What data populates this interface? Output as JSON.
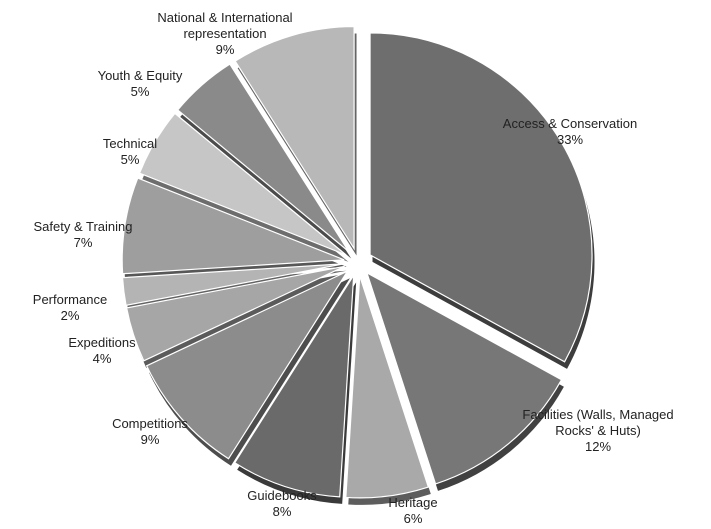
{
  "chart_data": {
    "type": "pie",
    "style": "exploded 3D pie, grayscale",
    "start_angle_deg": 0,
    "direction": "clockwise",
    "slices": [
      {
        "label": "Access & Conservation",
        "value": 33,
        "pct_label": "33%",
        "color": "#6e6e6e"
      },
      {
        "label": "Facilities (Walls, Managed Rocks' & Huts)",
        "value": 12,
        "pct_label": "12%",
        "color": "#777777"
      },
      {
        "label": "Heritage",
        "value": 6,
        "pct_label": "6%",
        "color": "#a9a9a9"
      },
      {
        "label": "Guidebooks",
        "value": 8,
        "pct_label": "8%",
        "color": "#6a6a6a"
      },
      {
        "label": "Competitions",
        "value": 9,
        "pct_label": "9%",
        "color": "#8c8c8c"
      },
      {
        "label": "Expeditions",
        "value": 4,
        "pct_label": "4%",
        "color": "#a6a6a6"
      },
      {
        "label": "Performance",
        "value": 2,
        "pct_label": "2%",
        "color": "#b4b4b4"
      },
      {
        "label": "Safety & Training",
        "value": 7,
        "pct_label": "7%",
        "color": "#9e9e9e"
      },
      {
        "label": "Technical",
        "value": 5,
        "pct_label": "5%",
        "color": "#c6c6c6"
      },
      {
        "label": "Youth & Equity",
        "value": 5,
        "pct_label": "5%",
        "color": "#8a8a8a"
      },
      {
        "label": "National & International representation",
        "value": 9,
        "pct_label": "9%",
        "color": "#b8b8b8"
      }
    ]
  }
}
